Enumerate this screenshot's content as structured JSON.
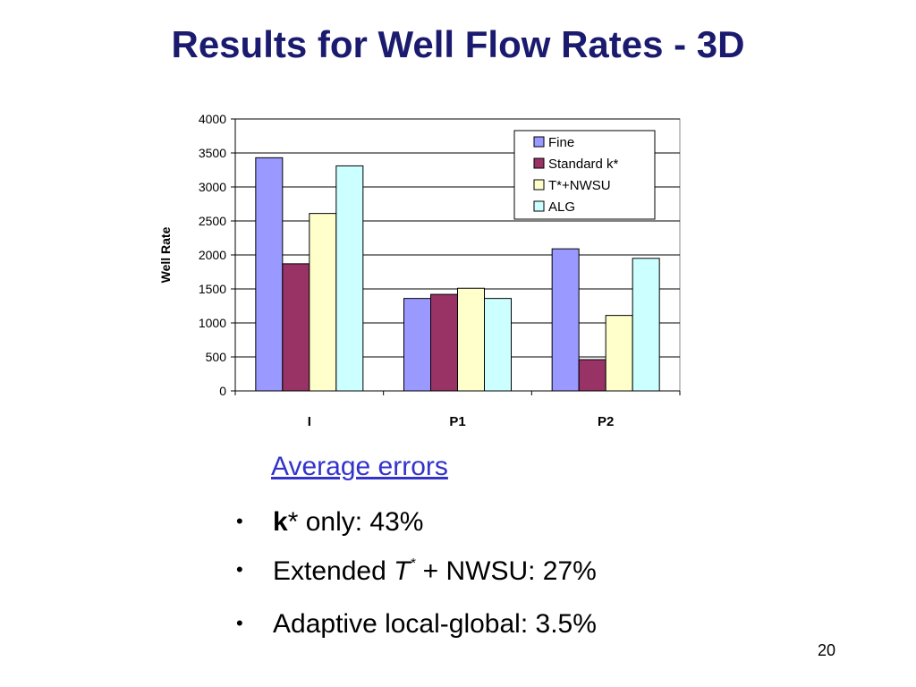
{
  "slide": {
    "title": "Results for Well Flow Rates - 3D",
    "page_number": "20"
  },
  "bullets": {
    "heading": "Average errors",
    "items": [
      {
        "bold": "k",
        "rest": "* only: 43%"
      },
      {
        "pre": "Extended ",
        "italic": "T",
        "sup": "*",
        "rest": " + NWSU: 27%"
      },
      {
        "rest": "Adaptive local-global: 3.5%"
      }
    ]
  },
  "chart_data": {
    "type": "bar",
    "title": "",
    "xlabel": "",
    "ylabel": "Well Rate",
    "categories": [
      "I",
      "P1",
      "P2"
    ],
    "ylim": [
      0,
      4000
    ],
    "yticks": [
      0,
      500,
      1000,
      1500,
      2000,
      2500,
      3000,
      3500,
      4000
    ],
    "grid": true,
    "legend_position": "top-right",
    "series": [
      {
        "name": "Fine",
        "color": "#9999ff",
        "values": [
          3430,
          1360,
          2090
        ]
      },
      {
        "name": "Standard k*",
        "color": "#993366",
        "values": [
          1870,
          1420,
          460
        ]
      },
      {
        "name": "T*+NWSU",
        "color": "#ffffcc",
        "values": [
          2610,
          1510,
          1110
        ]
      },
      {
        "name": "ALG",
        "color": "#ccffff",
        "values": [
          3310,
          1360,
          1950
        ]
      }
    ]
  }
}
